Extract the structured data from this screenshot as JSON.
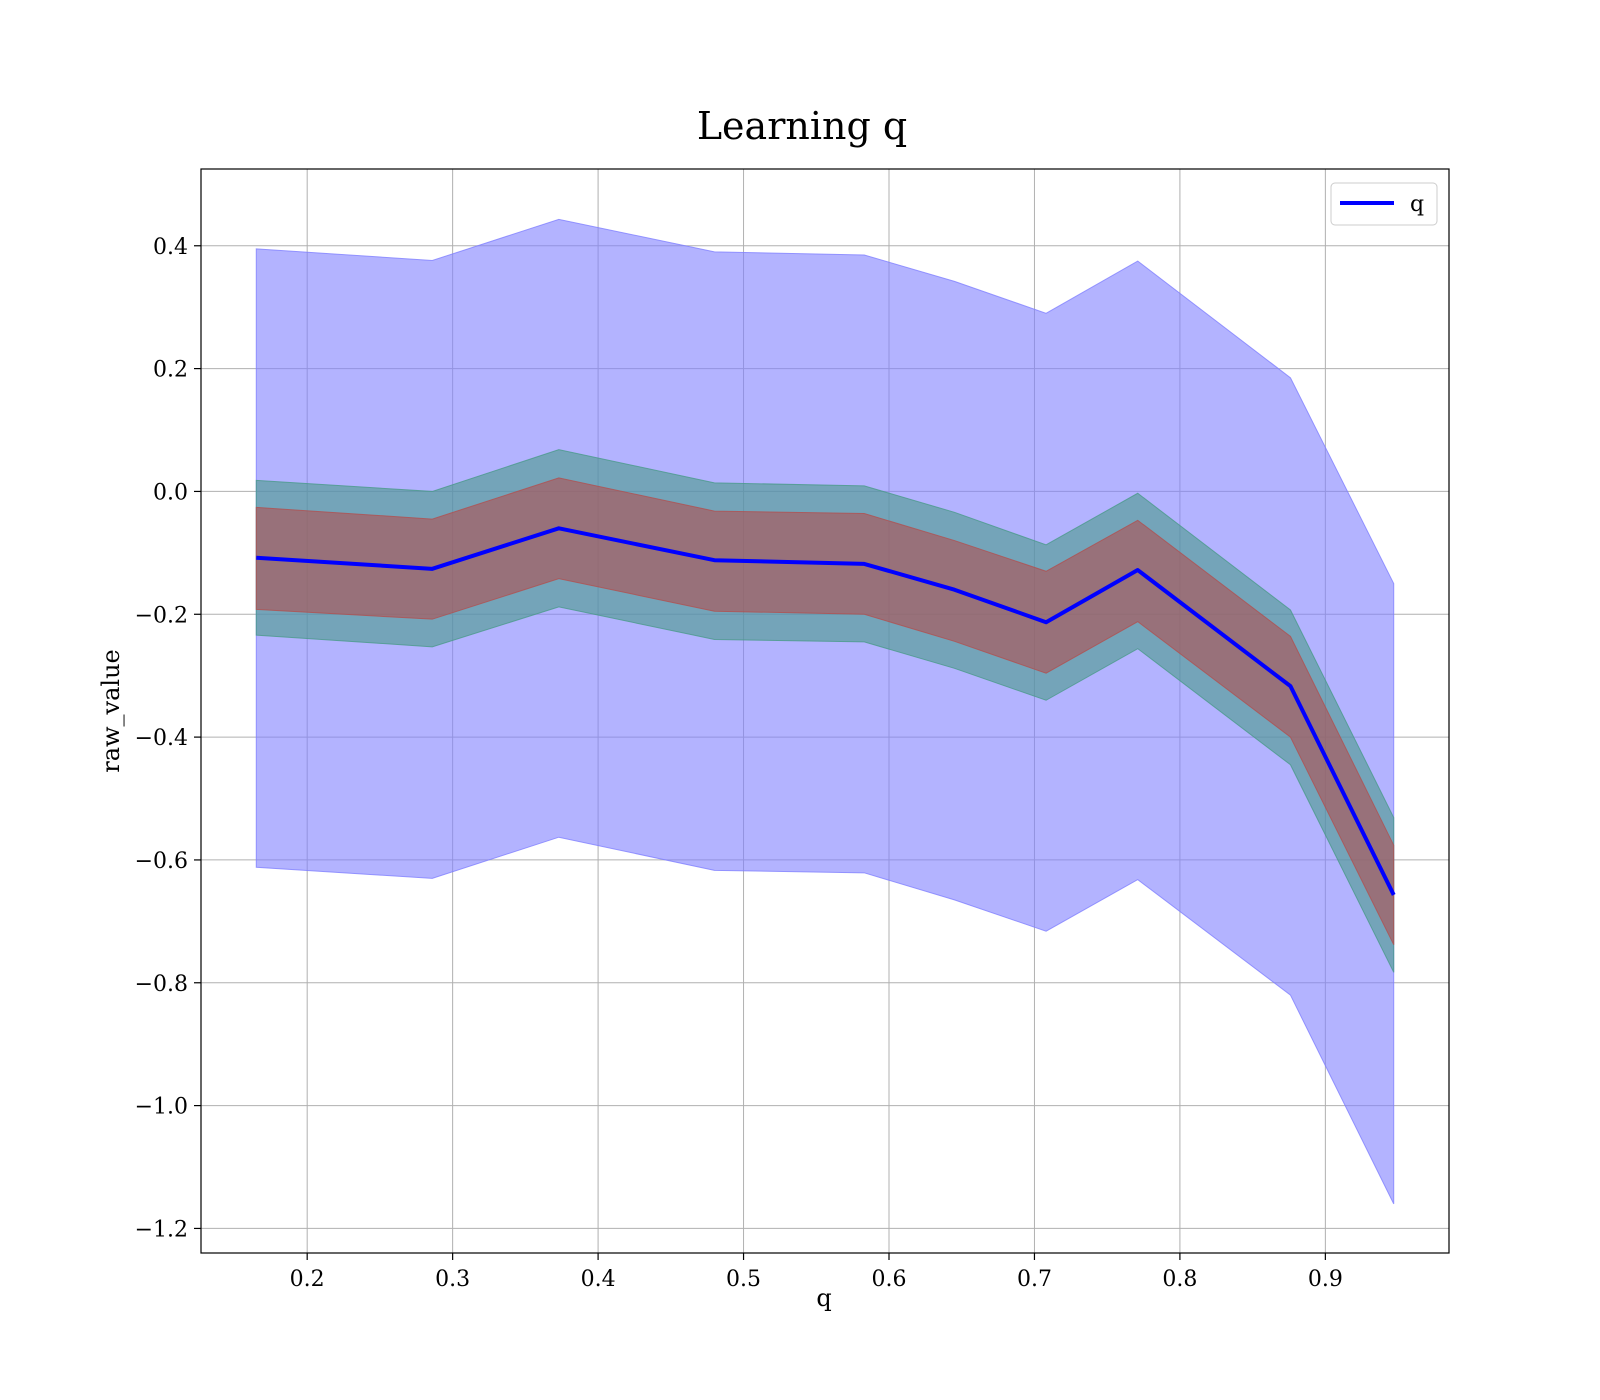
{
  "chart_data": {
    "type": "line",
    "title": "Learning q",
    "xlabel": "q",
    "ylabel": "raw_value",
    "xlim": [
      0.127,
      0.985
    ],
    "ylim": [
      -1.24,
      0.525
    ],
    "xticks": [
      0.2,
      0.3,
      0.4,
      0.5,
      0.6,
      0.7,
      0.8,
      0.9
    ],
    "xtick_labels": [
      "0.2",
      "0.3",
      "0.4",
      "0.5",
      "0.6",
      "0.7",
      "0.8",
      "0.9"
    ],
    "yticks": [
      0.4,
      0.2,
      0.0,
      -0.2,
      -0.4,
      -0.6,
      -0.8,
      -1.0,
      -1.2
    ],
    "ytick_labels": [
      "0.4",
      "0.2",
      "0.0",
      "−0.2",
      "−0.4",
      "−0.6",
      "−0.8",
      "−1.0",
      "−1.2"
    ],
    "grid": true,
    "legend_position": "top-right",
    "x": [
      0.165,
      0.286,
      0.373,
      0.48,
      0.583,
      0.645,
      0.708,
      0.771,
      0.876,
      0.947
    ],
    "series": [
      {
        "name": "q",
        "color": "#0000ff",
        "values": [
          -0.108,
          -0.126,
          -0.06,
          -0.112,
          -0.118,
          -0.16,
          -0.213,
          -0.128,
          -0.317,
          -0.657
        ]
      }
    ],
    "bands": [
      {
        "color": "#8080ff",
        "lower": [
          -0.612,
          -0.63,
          -0.563,
          -0.617,
          -0.621,
          -0.665,
          -0.716,
          -0.632,
          -0.82,
          -1.16
        ],
        "upper": [
          0.395,
          0.376,
          0.443,
          0.39,
          0.385,
          0.342,
          0.29,
          0.375,
          0.185,
          -0.15
        ]
      },
      {
        "color": "#4a9a8a",
        "lower": [
          -0.234,
          -0.253,
          -0.188,
          -0.241,
          -0.245,
          -0.288,
          -0.34,
          -0.256,
          -0.445,
          -0.783
        ],
        "upper": [
          0.018,
          0.0,
          0.068,
          0.014,
          0.009,
          -0.034,
          -0.087,
          -0.003,
          -0.193,
          -0.531
        ]
      },
      {
        "color": "#b05050",
        "lower": [
          -0.192,
          -0.208,
          -0.142,
          -0.195,
          -0.2,
          -0.244,
          -0.296,
          -0.212,
          -0.4,
          -0.738
        ],
        "upper": [
          -0.026,
          -0.045,
          0.022,
          -0.032,
          -0.036,
          -0.08,
          -0.13,
          -0.047,
          -0.236,
          -0.576
        ]
      }
    ]
  }
}
